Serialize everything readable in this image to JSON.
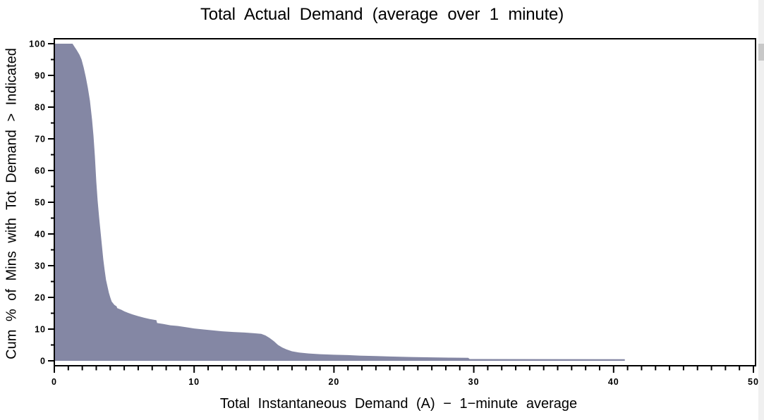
{
  "chart_data": {
    "type": "area",
    "title": "Total Actual Demand (average over 1 minute)",
    "xlabel": "Total Instantaneous Demand (A) − 1−minute average",
    "ylabel": "Cum % of Mins with Tot Demand > Indicated",
    "xlim": [
      0,
      50
    ],
    "ylim": [
      0,
      100
    ],
    "x_major_ticks": [
      0,
      10,
      20,
      30,
      40,
      50
    ],
    "x_minor_step": 1,
    "y_major_ticks": [
      0,
      10,
      20,
      30,
      40,
      50,
      60,
      70,
      80,
      90,
      100
    ],
    "y_minor_step": 5,
    "grid": false,
    "legend": null,
    "fill_color": "#8487A4",
    "axis_color": "#000000",
    "series": [
      {
        "name": "Cum % of minutes with total demand greater than indicated",
        "points": [
          [
            0,
            100
          ],
          [
            1.3,
            100
          ],
          [
            1.45,
            99
          ],
          [
            1.6,
            98
          ],
          [
            1.8,
            96.5
          ],
          [
            1.95,
            95
          ],
          [
            2.1,
            92.5
          ],
          [
            2.25,
            89.5
          ],
          [
            2.4,
            86
          ],
          [
            2.55,
            82
          ],
          [
            2.7,
            76
          ],
          [
            2.8,
            71
          ],
          [
            2.9,
            64.5
          ],
          [
            3.0,
            56.5
          ],
          [
            3.1,
            50.5
          ],
          [
            3.2,
            45.5
          ],
          [
            3.3,
            41
          ],
          [
            3.4,
            36.5
          ],
          [
            3.5,
            32
          ],
          [
            3.6,
            28.5
          ],
          [
            3.7,
            25.5
          ],
          [
            3.8,
            23.5
          ],
          [
            3.9,
            21.5
          ],
          [
            4.0,
            20
          ],
          [
            4.1,
            18.7
          ],
          [
            4.3,
            17.6
          ],
          [
            4.45,
            17.2
          ],
          [
            4.5,
            16.6
          ],
          [
            4.8,
            16.1
          ],
          [
            5.0,
            15.6
          ],
          [
            5.3,
            15.1
          ],
          [
            5.6,
            14.6
          ],
          [
            6.0,
            14.1
          ],
          [
            6.4,
            13.6
          ],
          [
            6.8,
            13.2
          ],
          [
            7.3,
            12.8
          ],
          [
            7.35,
            11.9
          ],
          [
            7.8,
            11.6
          ],
          [
            8.3,
            11.2
          ],
          [
            8.8,
            11.0
          ],
          [
            9.4,
            10.6
          ],
          [
            10.0,
            10.2
          ],
          [
            10.6,
            9.9
          ],
          [
            11.3,
            9.6
          ],
          [
            12.0,
            9.3
          ],
          [
            12.8,
            9.1
          ],
          [
            13.6,
            8.9
          ],
          [
            14.3,
            8.7
          ],
          [
            14.8,
            8.5
          ],
          [
            15.1,
            8.0
          ],
          [
            15.4,
            7.2
          ],
          [
            15.7,
            6.2
          ],
          [
            16.0,
            5.0
          ],
          [
            16.3,
            4.2
          ],
          [
            16.6,
            3.6
          ],
          [
            17.0,
            3.0
          ],
          [
            17.5,
            2.6
          ],
          [
            18.2,
            2.3
          ],
          [
            19.0,
            2.1
          ],
          [
            20.0,
            1.9
          ],
          [
            21.0,
            1.8
          ],
          [
            22.0,
            1.6
          ],
          [
            23.0,
            1.5
          ],
          [
            24.0,
            1.35
          ],
          [
            25.5,
            1.2
          ],
          [
            27.0,
            1.1
          ],
          [
            28.3,
            1.0
          ],
          [
            29.6,
            0.95
          ],
          [
            29.7,
            0.55
          ],
          [
            40.8,
            0.5
          ]
        ]
      }
    ]
  }
}
